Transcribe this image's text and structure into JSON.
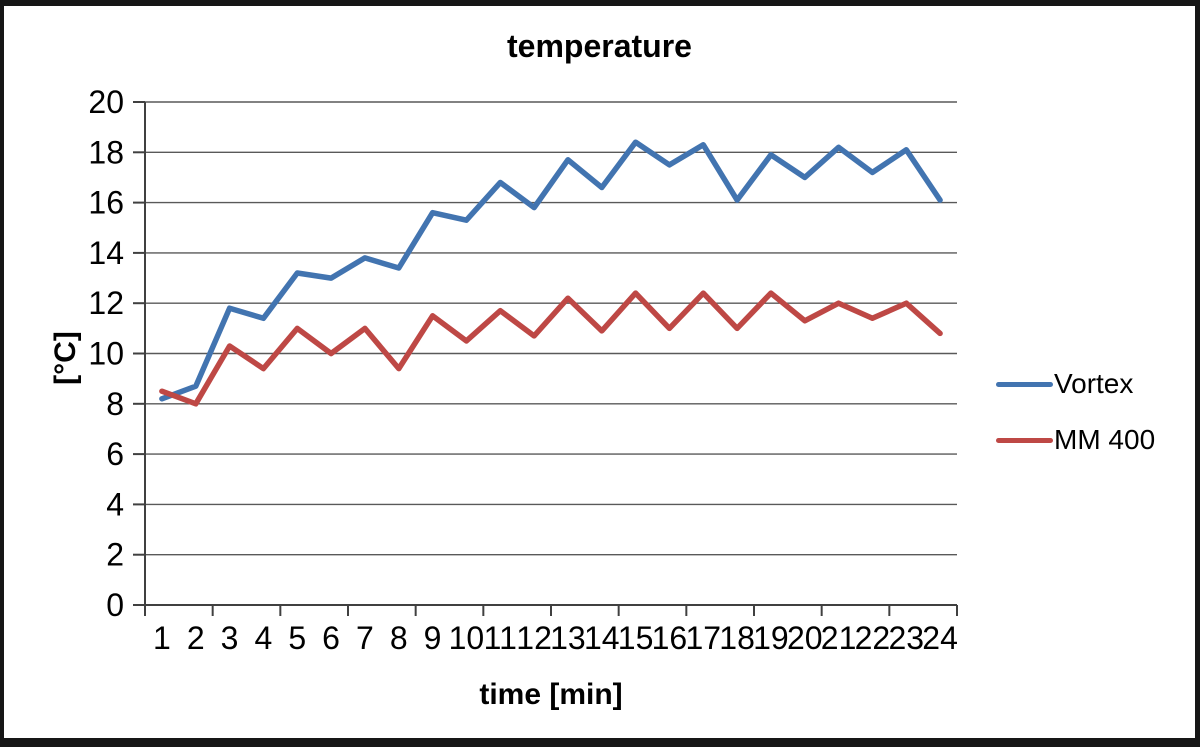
{
  "frame": {
    "background": "#ffffff",
    "border_color": "#161616"
  },
  "chart_data": {
    "type": "line",
    "title": "temperature",
    "xlabel": "time [min]",
    "ylabel": "[°C]",
    "x": [
      1,
      2,
      3,
      4,
      5,
      6,
      7,
      8,
      9,
      10,
      11,
      12,
      13,
      14,
      15,
      16,
      17,
      18,
      19,
      20,
      21,
      22,
      23,
      24
    ],
    "ylim": [
      0,
      20
    ],
    "ytick_step": 2,
    "grid": true,
    "legend_position": "right",
    "grid_color": "#595959",
    "axis_color": "#404040",
    "text_color": "#000000",
    "series": [
      {
        "name": "Vortex",
        "color": "#4274B0",
        "values": [
          8.2,
          8.7,
          11.8,
          11.4,
          13.2,
          13.0,
          13.8,
          13.4,
          15.6,
          15.3,
          16.8,
          15.8,
          17.7,
          16.6,
          18.4,
          17.5,
          18.3,
          16.1,
          17.9,
          17.0,
          18.2,
          17.2,
          18.1,
          16.1
        ]
      },
      {
        "name": "MM 400",
        "color": "#BE4845",
        "values": [
          8.5,
          8.0,
          10.3,
          9.4,
          11.0,
          10.0,
          11.0,
          9.4,
          11.5,
          10.5,
          11.7,
          10.7,
          12.2,
          10.9,
          12.4,
          11.0,
          12.4,
          11.0,
          12.4,
          11.3,
          12.0,
          11.4,
          12.0,
          10.8
        ]
      }
    ]
  }
}
